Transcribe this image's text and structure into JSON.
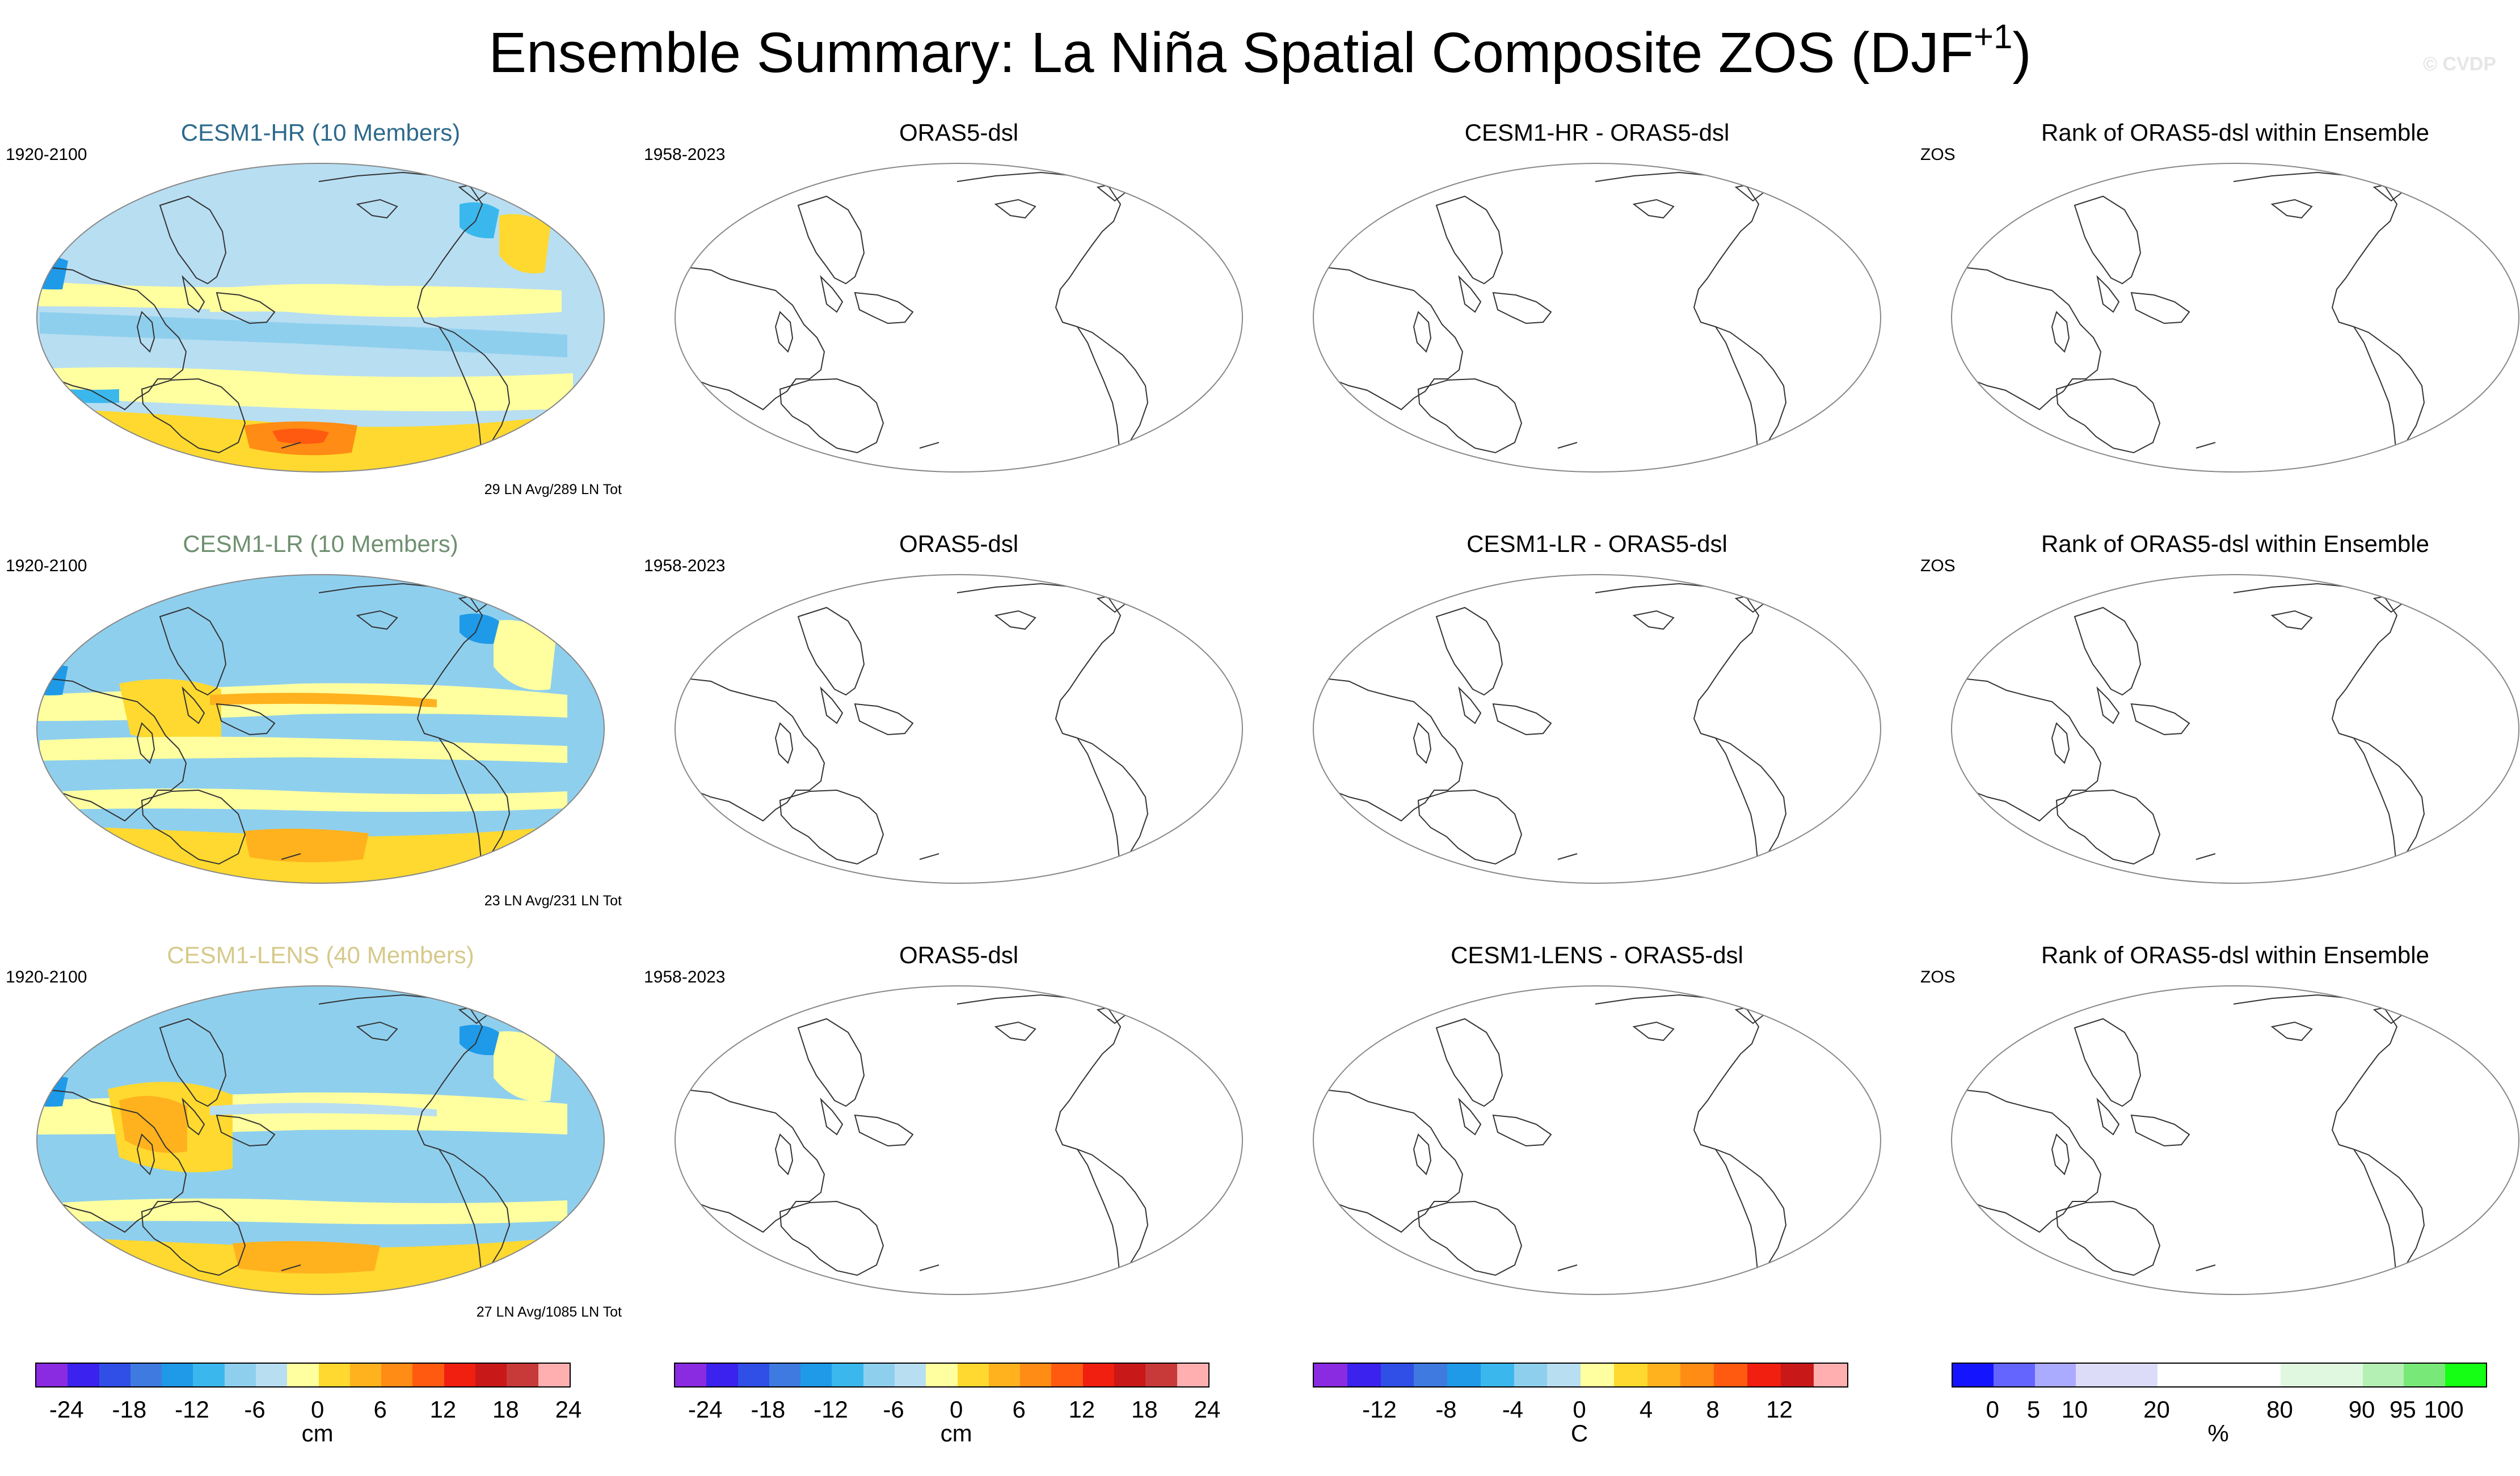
{
  "page": {
    "title": "Ensemble Summary: La Niña Spatial Composite ZOS (DJF",
    "title_sup": "+1",
    "title_end": ")",
    "copyright": "© CVDP"
  },
  "rows": [
    {
      "model": {
        "title": "CESM1-HR (10 Members)",
        "title_color": "#2d6a8c",
        "years": "1920-2100",
        "note": "29 LN Avg/289 LN Tot"
      },
      "obs": {
        "title": "ORAS5-dsl",
        "years": "1958-2023"
      },
      "diff": {
        "title": "CESM1-HR - ORAS5-dsl"
      },
      "rank": {
        "title": "Rank of ORAS5-dsl within Ensemble",
        "label": "ZOS"
      }
    },
    {
      "model": {
        "title": "CESM1-LR (10 Members)",
        "title_color": "#6f9070",
        "years": "1920-2100",
        "note": "23 LN Avg/231 LN Tot"
      },
      "obs": {
        "title": "ORAS5-dsl",
        "years": "1958-2023"
      },
      "diff": {
        "title": "CESM1-LR - ORAS5-dsl"
      },
      "rank": {
        "title": "Rank of ORAS5-dsl within Ensemble",
        "label": "ZOS"
      }
    },
    {
      "model": {
        "title": "CESM1-LENS (40 Members)",
        "title_color": "#d6c98a",
        "years": "1920-2100",
        "note": "27 LN Avg/1085 LN Tot"
      },
      "obs": {
        "title": "ORAS5-dsl",
        "years": "1958-2023"
      },
      "diff": {
        "title": "CESM1-LENS - ORAS5-dsl"
      },
      "rank": {
        "title": "Rank of ORAS5-dsl within Ensemble",
        "label": "ZOS"
      }
    }
  ],
  "legends": {
    "model": {
      "unit": "cm",
      "colors": [
        "#8a2be2",
        "#3b22ee",
        "#2f4fe6",
        "#3f7ae0",
        "#1e9ae8",
        "#3ab8ee",
        "#8fcfee",
        "#b8def2",
        "#ffff9f",
        "#ffd92f",
        "#ffb21e",
        "#ff8c14",
        "#ff5a10",
        "#f01f10",
        "#c81818",
        "#c83a3a",
        "#ffafaf"
      ],
      "ticks": [
        "-24",
        "-18",
        "-12",
        "-6",
        "0",
        "6",
        "12",
        "18",
        "24"
      ]
    },
    "obs": {
      "unit": "cm",
      "colors": [
        "#8a2be2",
        "#3b22ee",
        "#2f4fe6",
        "#3f7ae0",
        "#1e9ae8",
        "#3ab8ee",
        "#8fcfee",
        "#b8def2",
        "#ffff9f",
        "#ffd92f",
        "#ffb21e",
        "#ff8c14",
        "#ff5a10",
        "#f01f10",
        "#c81818",
        "#c83a3a",
        "#ffafaf"
      ],
      "ticks": [
        "-24",
        "-18",
        "-12",
        "-6",
        "0",
        "6",
        "12",
        "18",
        "24"
      ]
    },
    "diff": {
      "unit": "C",
      "colors": [
        "#8a2be2",
        "#3b22ee",
        "#2f4fe6",
        "#3f7ae0",
        "#1e9ae8",
        "#3ab8ee",
        "#8fcfee",
        "#b8def2",
        "#ffff9f",
        "#ffd92f",
        "#ffb21e",
        "#ff8c14",
        "#ff5a10",
        "#f01f10",
        "#c81818",
        "#ffafaf"
      ],
      "ticks": [
        "-12",
        "-8",
        "-4",
        "0",
        "4",
        "8",
        "12"
      ]
    },
    "rank": {
      "unit": "%",
      "colors": [
        "#1414ff",
        "#6464ff",
        "#aaaaff",
        "#dcdcf8",
        "#dcdcf8",
        "#ffffff",
        "#ffffff",
        "#ffffff",
        "#e0f8e0",
        "#e0f8e0",
        "#b4f0b4",
        "#78e878",
        "#14ff14"
      ],
      "ticks": [
        "0",
        "5",
        "10",
        "20",
        "80",
        "90",
        "95",
        "100"
      ]
    }
  },
  "map_colors": {
    "ocean_light_blue": "#b8def2",
    "blue": "#8fcfee",
    "deep_blue": "#3ab8ee",
    "strong_blue": "#1e9ae8",
    "yellow": "#ffff9f",
    "gold": "#ffd92f",
    "orange": "#ffb21e",
    "dark_orange": "#ff8c14",
    "red": "#ff5a10"
  }
}
